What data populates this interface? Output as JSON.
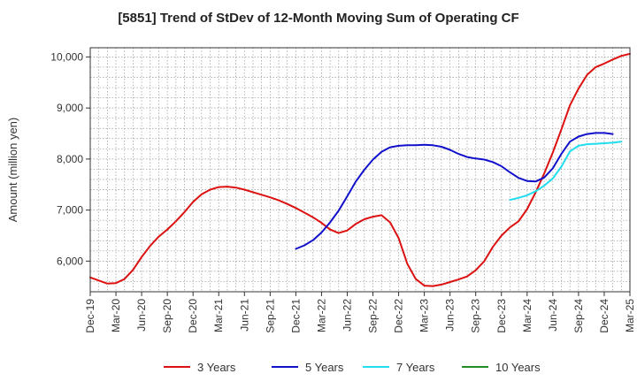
{
  "chart_data": {
    "type": "line",
    "title": "[5851]  Trend of StDev of 12-Month Moving Sum of Operating CF",
    "xlabel": "",
    "ylabel": "Amount (million yen)",
    "x_tick_labels": [
      "Dec-19",
      "Mar-20",
      "Jun-20",
      "Sep-20",
      "Dec-20",
      "Mar-21",
      "Jun-21",
      "Sep-21",
      "Dec-21",
      "Mar-22",
      "Jun-22",
      "Sep-22",
      "Dec-22",
      "Mar-23",
      "Jun-23",
      "Sep-23",
      "Dec-23",
      "Mar-24",
      "Jun-24",
      "Sep-24",
      "Dec-24",
      "Mar-25"
    ],
    "y_ticks": [
      6000,
      7000,
      8000,
      9000,
      10000
    ],
    "y_tick_labels": [
      "6,000",
      "7,000",
      "8,000",
      "9,000",
      "10,000"
    ],
    "xlim": [
      0,
      63
    ],
    "ylim": [
      5400,
      10180
    ],
    "grid": true,
    "legend_position": "bottom",
    "series": [
      {
        "name": "3 Years",
        "color": "#dd1111",
        "start": 0,
        "values": [
          5680,
          5620,
          5560,
          5570,
          5650,
          5830,
          6080,
          6300,
          6480,
          6620,
          6780,
          6960,
          7160,
          7310,
          7400,
          7450,
          7460,
          7440,
          7400,
          7350,
          7300,
          7250,
          7190,
          7120,
          7040,
          6950,
          6860,
          6750,
          6620,
          6550,
          6600,
          6730,
          6820,
          6870,
          6900,
          6760,
          6450,
          5950,
          5650,
          5520,
          5510,
          5540,
          5590,
          5640,
          5700,
          5820,
          6000,
          6280,
          6500,
          6660,
          6780,
          7020,
          7350,
          7720,
          8130,
          8580,
          9050,
          9380,
          9650,
          9800,
          9870,
          9950,
          10020,
          10060
        ]
      },
      {
        "name": "5 Years",
        "color": "#1111cc",
        "start": 24,
        "values": [
          6240,
          6310,
          6410,
          6560,
          6760,
          6990,
          7270,
          7560,
          7790,
          7990,
          8140,
          8230,
          8260,
          8270,
          8270,
          8280,
          8270,
          8240,
          8180,
          8100,
          8040,
          8010,
          7990,
          7940,
          7860,
          7740,
          7630,
          7570,
          7560,
          7640,
          7820,
          8100,
          8340,
          8440,
          8490,
          8510,
          8510,
          8490
        ]
      },
      {
        "name": "7 Years",
        "color": "#22ddee",
        "start": 49,
        "values": [
          7200,
          7240,
          7290,
          7370,
          7480,
          7620,
          7850,
          8150,
          8260,
          8290,
          8300,
          8310,
          8320,
          8340
        ]
      },
      {
        "name": "10 Years",
        "color": "#228b22",
        "start": 0,
        "values": []
      }
    ]
  }
}
